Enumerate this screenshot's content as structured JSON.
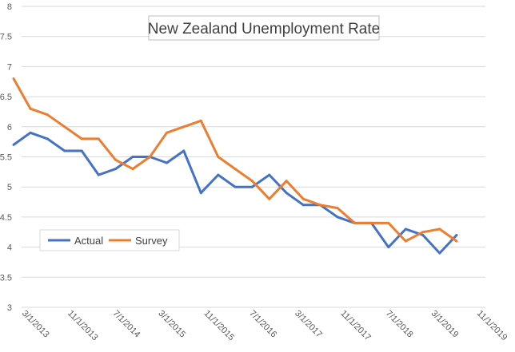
{
  "chart_data": {
    "type": "line",
    "title": "New Zealand Unemployment Rate",
    "xlabel": "",
    "ylabel": "",
    "ylim": [
      3,
      8
    ],
    "yticks": [
      "3",
      "3.5",
      "4",
      "4.5",
      "5",
      "5.5",
      "6",
      "6.5",
      "7",
      "7.5",
      "8"
    ],
    "xticks": [
      "3/1/2013",
      "11/1/2013",
      "7/1/2014",
      "3/1/2015",
      "11/1/2015",
      "7/1/2016",
      "3/1/2017",
      "11/1/2017",
      "7/1/2018",
      "3/1/2019",
      "11/1/2019"
    ],
    "grid": "horizontal",
    "legend": "bottom-left",
    "x": [
      "12/31/2012",
      "3/31/2013",
      "6/30/2013",
      "9/30/2013",
      "12/31/2013",
      "3/31/2014",
      "6/30/2014",
      "9/30/2014",
      "12/31/2014",
      "3/31/2015",
      "6/30/2015",
      "9/30/2015",
      "12/31/2015",
      "3/31/2016",
      "6/30/2016",
      "9/30/2016",
      "12/31/2016",
      "3/31/2017",
      "6/30/2017",
      "9/30/2017",
      "12/31/2017",
      "3/31/2018",
      "6/30/2018",
      "9/30/2018",
      "12/31/2018",
      "3/31/2019",
      "6/30/2019"
    ],
    "series": [
      {
        "name": "Actual",
        "color": "#4472c4",
        "values": [
          5.7,
          5.9,
          5.8,
          5.6,
          5.6,
          5.2,
          5.3,
          5.5,
          5.5,
          5.4,
          5.6,
          4.9,
          5.2,
          5.0,
          5.0,
          5.2,
          4.9,
          4.7,
          4.7,
          4.5,
          4.4,
          4.4,
          4.0,
          4.3,
          4.2,
          3.9,
          4.2
        ]
      },
      {
        "name": "Survey",
        "color": "#ed7d31",
        "values": [
          6.8,
          6.3,
          6.2,
          6.0,
          5.8,
          5.8,
          5.45,
          5.3,
          5.5,
          5.9,
          6.0,
          6.1,
          5.5,
          5.3,
          5.1,
          4.8,
          5.1,
          4.8,
          4.7,
          4.65,
          4.4,
          4.4,
          4.4,
          4.1,
          4.25,
          4.3,
          4.1
        ]
      }
    ]
  }
}
